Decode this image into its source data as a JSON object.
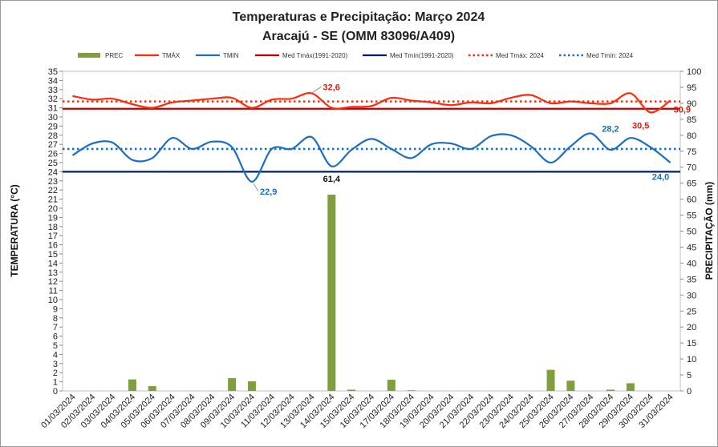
{
  "chart_data": {
    "type": "line",
    "title": "Temperaturas e Precipitação: Março 2024",
    "subtitle": "Aracajú - SE (OMM 83096/A409)",
    "ylabel_left": "TEMPERATURA  (°C)",
    "ylabel_right": "PRECIPITAÇÃO  (mm)",
    "ylim_left": [
      0,
      35
    ],
    "ylim_right": [
      0,
      100
    ],
    "categories": [
      "01/03/2024",
      "02/03/2024",
      "03/03/2024",
      "04/03/2024",
      "05/03/2024",
      "06/03/2024",
      "07/03/2024",
      "08/03/2024",
      "09/03/2024",
      "10/03/2024",
      "11/03/2024",
      "12/03/2024",
      "13/03/2024",
      "14/03/2024",
      "15/03/2024",
      "16/03/2024",
      "17/03/2024",
      "18/03/2024",
      "19/03/2024",
      "20/03/2024",
      "21/03/2024",
      "22/03/2024",
      "23/03/2024",
      "24/03/2024",
      "25/03/2024",
      "26/03/2024",
      "27/03/2024",
      "28/03/2024",
      "29/03/2024",
      "30/03/2024",
      "31/03/2024"
    ],
    "legend": [
      "PREC",
      "TMÁX",
      "TMIN",
      "Med Tmáx(1991-2020)",
      "Med Tmín(1991-2020)",
      "Med Tmáx: 2024",
      "Med Tmín: 2024"
    ],
    "series": [
      {
        "name": "PREC",
        "type": "bar",
        "axis": "right",
        "color": "#7f9f3e",
        "values": [
          0,
          0,
          0,
          3.6,
          1.5,
          0,
          0,
          0,
          4.0,
          3.0,
          0,
          0,
          0,
          61.4,
          0.4,
          0,
          3.5,
          0.2,
          0,
          0,
          0,
          0,
          0,
          0,
          6.6,
          3.2,
          0,
          0.4,
          2.4,
          0,
          0
        ]
      },
      {
        "name": "TMÁX",
        "type": "line",
        "axis": "left",
        "color": "#ff2a0a",
        "values": [
          32.3,
          31.9,
          32.0,
          31.4,
          31.0,
          31.6,
          31.8,
          32.0,
          32.1,
          31.0,
          31.9,
          32.0,
          32.6,
          31.0,
          31.1,
          31.2,
          32.1,
          31.8,
          31.6,
          31.3,
          31.6,
          31.5,
          32.1,
          32.4,
          31.5,
          31.7,
          31.5,
          31.5,
          32.6,
          30.5,
          31.8
        ]
      },
      {
        "name": "TMIN",
        "type": "line",
        "axis": "left",
        "color": "#1a6fc0",
        "values": [
          25.8,
          27.1,
          27.2,
          25.3,
          25.5,
          27.7,
          26.5,
          27.3,
          26.7,
          22.9,
          26.5,
          26.5,
          27.8,
          24.6,
          26.4,
          27.6,
          26.5,
          25.5,
          27.0,
          27.1,
          26.5,
          27.9,
          28.0,
          26.8,
          25.0,
          26.8,
          28.2,
          26.4,
          27.7,
          26.7,
          25.0
        ]
      },
      {
        "name": "Med Tmáx(1991-2020)",
        "type": "hline",
        "axis": "left",
        "color": "#c00000",
        "value": 30.9
      },
      {
        "name": "Med Tmín(1991-2020)",
        "type": "hline",
        "axis": "left",
        "color": "#001f66",
        "value": 24.0
      },
      {
        "name": "Med Tmáx: 2024",
        "type": "hline-dotted",
        "axis": "left",
        "color": "#ff2a0a",
        "value": 31.7
      },
      {
        "name": "Med Tmín: 2024",
        "type": "hline-dotted",
        "axis": "left",
        "color": "#1a6fc0",
        "value": 26.5
      }
    ],
    "annotations": [
      {
        "text": "32,6",
        "series": "TMÁX",
        "index": 12,
        "color": "#e8190a"
      },
      {
        "text": "30,5",
        "series": "TMÁX",
        "index": 29,
        "color": "#e8190a"
      },
      {
        "text": "30,9",
        "series": "Med Tmáx(1991-2020)",
        "index": 30,
        "color": "#e8190a"
      },
      {
        "text": "22,9",
        "series": "TMIN",
        "index": 9,
        "color": "#1a6fc0"
      },
      {
        "text": "28,2",
        "series": "TMIN",
        "index": 26,
        "color": "#1a6fc0"
      },
      {
        "text": "24,0",
        "series": "Med Tmín(1991-2020)",
        "index": 30,
        "color": "#1a6fc0"
      },
      {
        "text": "61,4",
        "series": "PREC",
        "index": 13,
        "color": "#111111"
      }
    ]
  }
}
